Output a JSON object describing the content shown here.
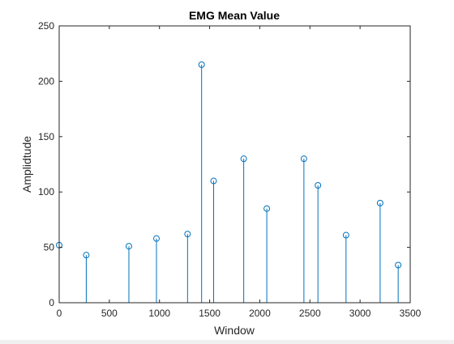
{
  "chart_data": {
    "type": "stem",
    "title": "EMG Mean Value",
    "xlabel": "Window",
    "ylabel": "Amplidtude",
    "xlim": [
      0,
      3500
    ],
    "ylim": [
      0,
      250
    ],
    "xticks": [
      0,
      500,
      1000,
      1500,
      2000,
      2500,
      3000,
      3500
    ],
    "yticks": [
      0,
      50,
      100,
      150,
      200,
      250
    ],
    "grid": false,
    "box": true,
    "marker": "circle",
    "color": "#0072bd",
    "x": [
      0,
      270,
      695,
      970,
      1280,
      1420,
      1540,
      1840,
      2070,
      2440,
      2580,
      2860,
      3200,
      3380
    ],
    "y": [
      52,
      43,
      51,
      58,
      62,
      215,
      110,
      130,
      85,
      130,
      106,
      61,
      90,
      34
    ]
  }
}
